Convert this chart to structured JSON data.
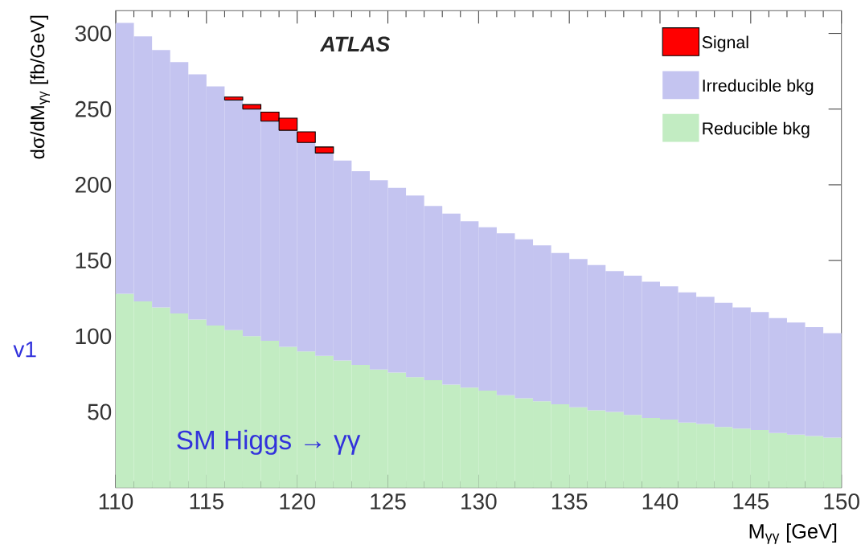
{
  "chart_data": {
    "type": "bar",
    "stacked": true,
    "x": [
      110.5,
      111.5,
      112.5,
      113.5,
      114.5,
      115.5,
      116.5,
      117.5,
      118.5,
      119.5,
      120.5,
      121.5,
      122.5,
      123.5,
      124.5,
      125.5,
      126.5,
      127.5,
      128.5,
      129.5,
      130.5,
      131.5,
      132.5,
      133.5,
      134.5,
      135.5,
      136.5,
      137.5,
      138.5,
      139.5,
      140.5,
      141.5,
      142.5,
      143.5,
      144.5,
      145.5,
      146.5,
      147.5,
      148.5,
      149.5
    ],
    "series": [
      {
        "name": "Reducible bkg",
        "color": "#c2ecc2",
        "values": [
          128,
          123,
          119,
          115,
          111,
          107,
          104,
          100,
          97,
          93,
          90,
          87,
          84,
          81,
          78,
          76,
          73,
          71,
          68,
          66,
          64,
          61,
          59,
          57,
          55,
          53,
          51,
          50,
          48,
          46,
          45,
          43,
          42,
          40,
          39,
          38,
          36,
          35,
          34,
          33
        ]
      },
      {
        "name": "Irreducible bkg",
        "color": "#c4c4f0",
        "values": [
          179,
          175,
          170,
          166,
          162,
          158,
          152,
          150,
          145,
          143,
          138,
          134,
          132,
          128,
          125,
          122,
          120,
          115,
          113,
          110,
          108,
          107,
          105,
          103,
          100,
          98,
          96,
          93,
          92,
          90,
          88,
          86,
          84,
          82,
          80,
          78,
          76,
          74,
          72,
          69
        ]
      },
      {
        "name": "Signal",
        "color": "#ff0000",
        "values": [
          null,
          null,
          null,
          null,
          null,
          null,
          2,
          3,
          6,
          8,
          7,
          4,
          null,
          null,
          null,
          null,
          null,
          null,
          null,
          null,
          null,
          null,
          null,
          null,
          null,
          null,
          null,
          null,
          null,
          null,
          null,
          null,
          null,
          null,
          null,
          null,
          null,
          null,
          null,
          null
        ]
      }
    ],
    "xlabel": "M$_{γγ}$ [GeV]",
    "ylabel": "dσ/dM$_{γγ}$ [fb/GeV]",
    "xlim": [
      110,
      150
    ],
    "xticks": [
      110,
      115,
      120,
      125,
      130,
      135,
      140,
      145,
      150
    ],
    "ylim": [
      0,
      315
    ],
    "yticks": [
      50,
      100,
      150,
      200,
      250,
      300
    ],
    "legend": "top right",
    "annotations": [
      "ATLAS",
      "SM Higgs → γγ",
      "v1"
    ]
  }
}
